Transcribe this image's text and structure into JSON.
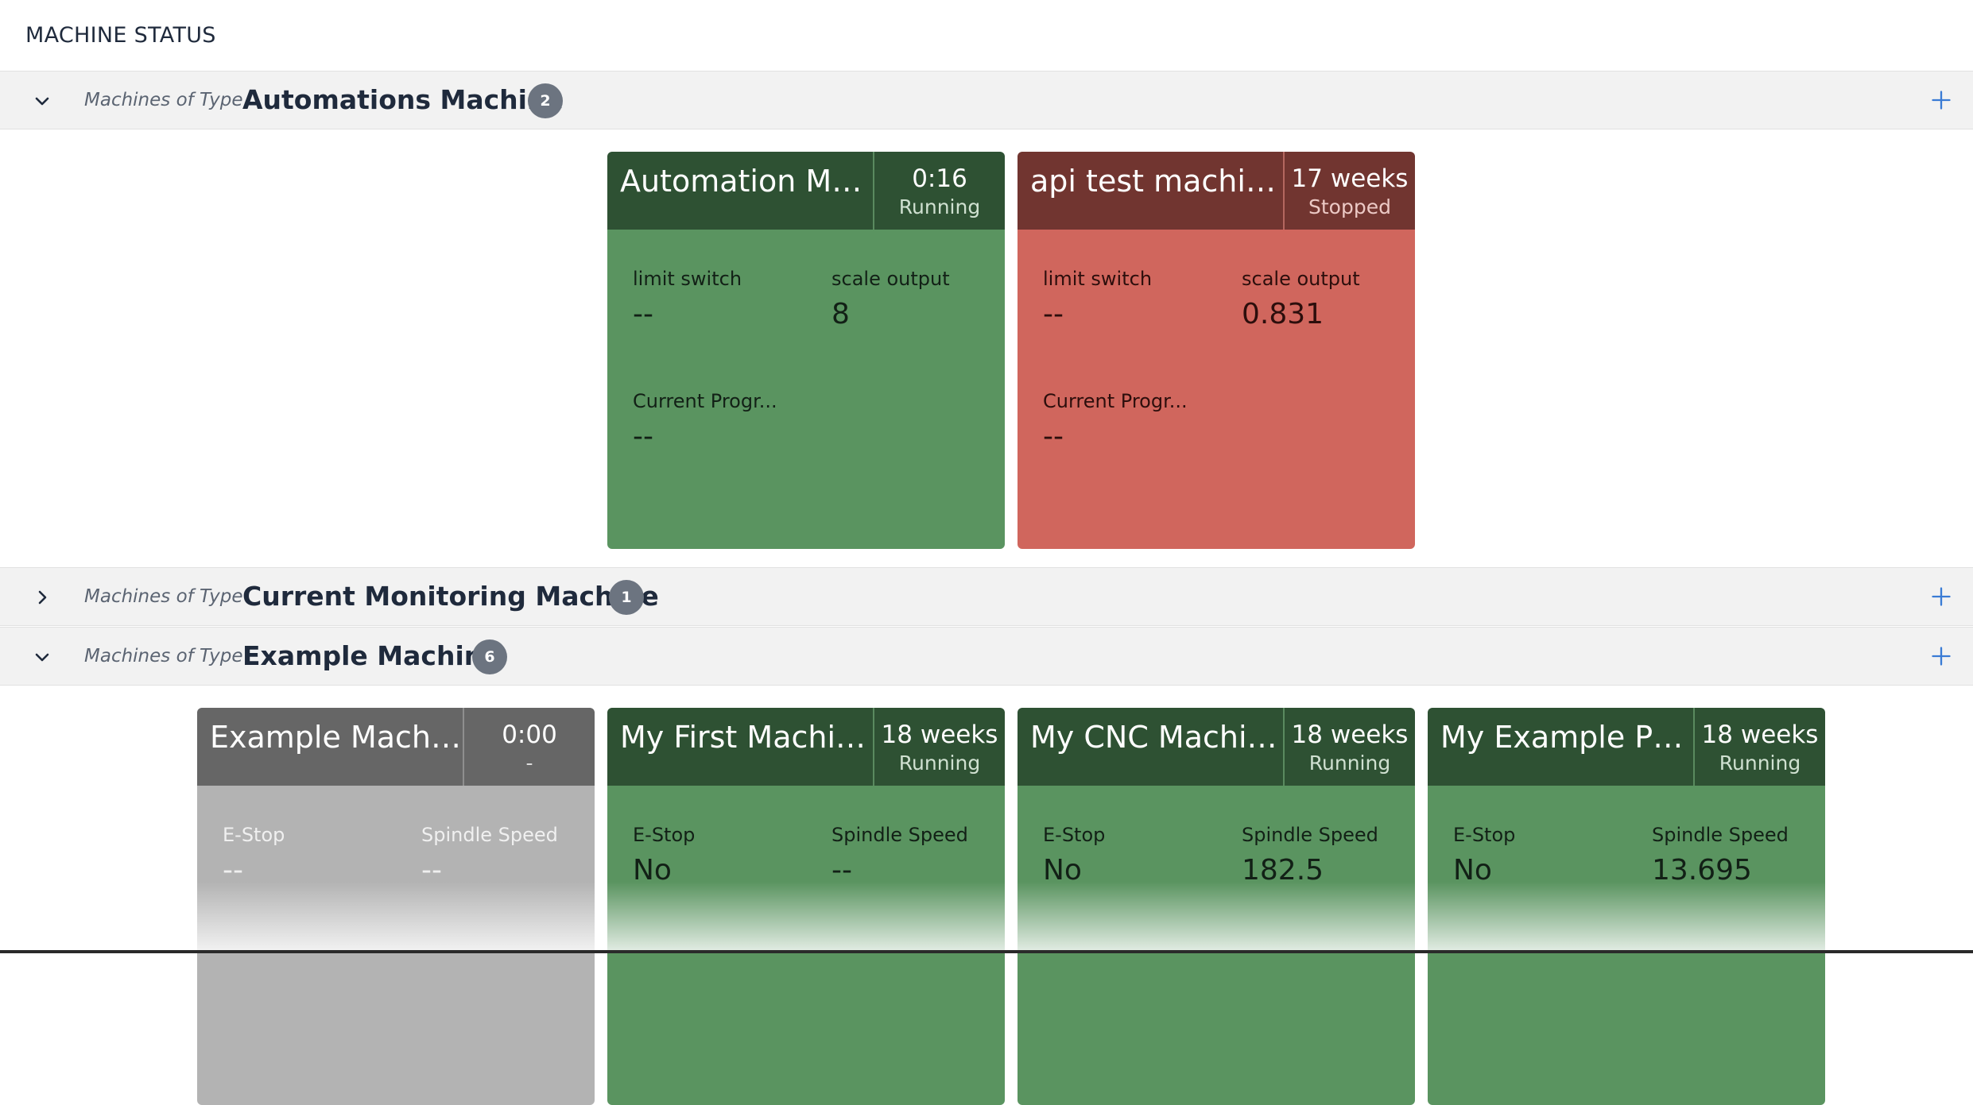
{
  "page": {
    "title": "MACHINE STATUS"
  },
  "groups": [
    {
      "prefix": "Machines of Type",
      "type_name": "Automations Machine",
      "count": "2",
      "expanded": true,
      "machines": [
        {
          "name": "Automation Ma...",
          "time": "0:16",
          "state": "Running",
          "status_color": "green",
          "fields": [
            {
              "label": "limit switch",
              "value": "--"
            },
            {
              "label": "scale output",
              "value": "8"
            },
            {
              "label": "Current Progr...",
              "value": "--"
            }
          ]
        },
        {
          "name": "api test machin...",
          "time": "17 weeks",
          "state": "Stopped",
          "status_color": "red",
          "fields": [
            {
              "label": "limit switch",
              "value": "--"
            },
            {
              "label": "scale output",
              "value": "0.831"
            },
            {
              "label": "Current Progr...",
              "value": "--"
            }
          ]
        }
      ]
    },
    {
      "prefix": "Machines of Type",
      "type_name": "Current Monitoring Machine",
      "count": "1",
      "expanded": false,
      "machines": []
    },
    {
      "prefix": "Machines of Type",
      "type_name": "Example Machine",
      "count": "6",
      "expanded": true,
      "machines": [
        {
          "name": "Example Machine",
          "time": "0:00",
          "state": "-",
          "status_color": "gray",
          "fields": [
            {
              "label": "E-Stop",
              "value": "--"
            },
            {
              "label": "Spindle Speed",
              "value": "--"
            }
          ]
        },
        {
          "name": "My First Machin...",
          "time": "18 weeks",
          "state": "Running",
          "status_color": "green",
          "fields": [
            {
              "label": "E-Stop",
              "value": "No"
            },
            {
              "label": "Spindle Speed",
              "value": "--"
            }
          ]
        },
        {
          "name": "My CNC Machine",
          "time": "18 weeks",
          "state": "Running",
          "status_color": "green",
          "fields": [
            {
              "label": "E-Stop",
              "value": "No"
            },
            {
              "label": "Spindle Speed",
              "value": "182.5"
            }
          ]
        },
        {
          "name": "My Example PP ...",
          "time": "18 weeks",
          "state": "Running",
          "status_color": "green",
          "fields": [
            {
              "label": "E-Stop",
              "value": "No"
            },
            {
              "label": "Spindle Speed",
              "value": "13.695"
            }
          ]
        }
      ]
    }
  ],
  "icons": {
    "expanded": "chevron-down-icon",
    "collapsed": "chevron-right-icon",
    "add": "plus-icon"
  },
  "colors": {
    "running_header": "#2e5133",
    "running_body": "#5a9460",
    "stopped_header": "#713530",
    "stopped_body": "#d0665d",
    "idle_header": "#666666",
    "idle_body": "#b3b3b3",
    "badge": "#6c7480",
    "accent": "#3a7bd5"
  }
}
